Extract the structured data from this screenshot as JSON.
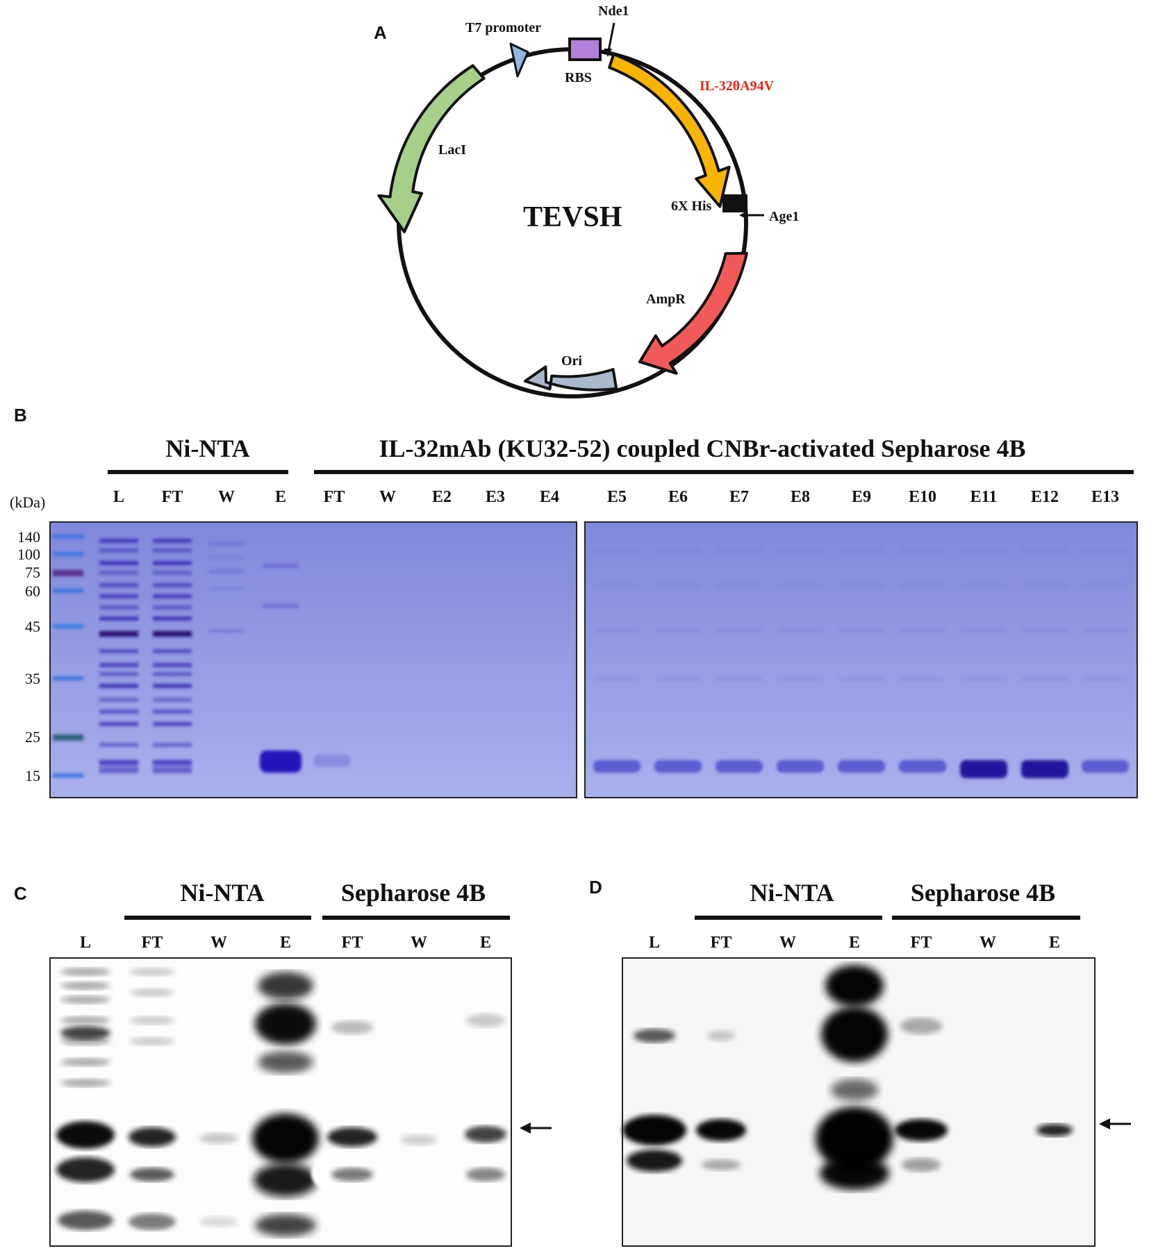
{
  "panels": {
    "a": "A",
    "b": "B",
    "c": "C",
    "d": "D"
  },
  "plasmid": {
    "name": "TEVSH",
    "features": {
      "t7": "T7 promoter",
      "nde1": "Nde1",
      "rbs": "RBS",
      "insert": "IL-32θA94V",
      "his": "6X His",
      "age1": "Age1",
      "laci": "LacI",
      "ampr": "AmpR",
      "ori": "Ori"
    },
    "colors": {
      "insert": "#f7b500",
      "insert_label": "#e8271f",
      "laci": "#a6cf8a",
      "ampr": "#f25a5a",
      "ori": "#aab8cc",
      "rbs": "#b27fd9",
      "t7": "#8fb7df"
    }
  },
  "gel_b": {
    "groups": {
      "ni": "Ni-NTA",
      "seph": "IL-32mAb (KU32-52) coupled CNBr-activated Sepharose 4B"
    },
    "unit": "(kDa)",
    "markers": [
      "140",
      "100",
      "75",
      "60",
      "45",
      "35",
      "25",
      "15"
    ],
    "lanes_left": [
      "L",
      "FT",
      "W",
      "E",
      "FT",
      "W",
      "E2",
      "E3",
      "E4"
    ],
    "lanes_right": [
      "E5",
      "E6",
      "E7",
      "E8",
      "E9",
      "E10",
      "E11",
      "E12",
      "E13"
    ]
  },
  "blot_c": {
    "groups": {
      "ni": "Ni-NTA",
      "seph": "Sepharose 4B"
    },
    "lanes": [
      "L",
      "FT",
      "W",
      "E",
      "FT",
      "W",
      "E"
    ]
  },
  "blot_d": {
    "groups": {
      "ni": "Ni-NTA",
      "seph": "Sepharose 4B"
    },
    "lanes": [
      "L",
      "FT",
      "W",
      "E",
      "FT",
      "W",
      "E"
    ]
  }
}
